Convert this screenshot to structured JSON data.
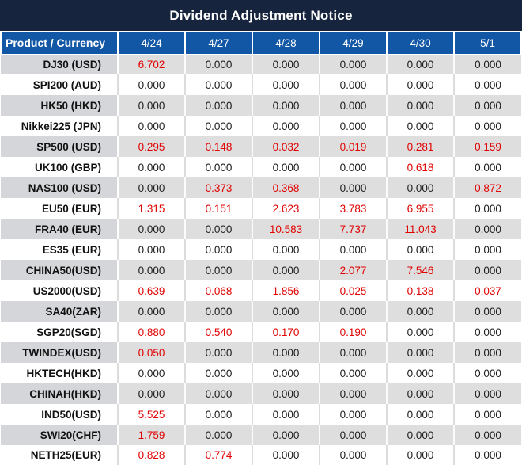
{
  "title": "Dividend Adjustment Notice",
  "colors": {
    "title_bg": "#16243e",
    "header_bg": "#1257a5",
    "gray_row_bg": "#dedede",
    "gray_row_product_bg": "#d4d6d9",
    "value_highlight_red": "#e00000",
    "value_normal": "#1c1c1c"
  },
  "table": {
    "columns": [
      "Product / Currency",
      "4/24",
      "4/27",
      "4/28",
      "4/29",
      "4/30",
      "5/1"
    ],
    "rows": [
      {
        "product": "DJ30 (USD)",
        "values": [
          "6.702",
          "0.000",
          "0.000",
          "0.000",
          "0.000",
          "0.000"
        ]
      },
      {
        "product": "SPI200 (AUD)",
        "values": [
          "0.000",
          "0.000",
          "0.000",
          "0.000",
          "0.000",
          "0.000"
        ]
      },
      {
        "product": "HK50 (HKD)",
        "values": [
          "0.000",
          "0.000",
          "0.000",
          "0.000",
          "0.000",
          "0.000"
        ]
      },
      {
        "product": "Nikkei225 (JPN)",
        "values": [
          "0.000",
          "0.000",
          "0.000",
          "0.000",
          "0.000",
          "0.000"
        ]
      },
      {
        "product": "SP500 (USD)",
        "values": [
          "0.295",
          "0.148",
          "0.032",
          "0.019",
          "0.281",
          "0.159"
        ]
      },
      {
        "product": "UK100 (GBP)",
        "values": [
          "0.000",
          "0.000",
          "0.000",
          "0.000",
          "0.618",
          "0.000"
        ]
      },
      {
        "product": "NAS100 (USD)",
        "values": [
          "0.000",
          "0.373",
          "0.368",
          "0.000",
          "0.000",
          "0.872"
        ]
      },
      {
        "product": "EU50 (EUR)",
        "values": [
          "1.315",
          "0.151",
          "2.623",
          "3.783",
          "6.955",
          "0.000"
        ]
      },
      {
        "product": "FRA40 (EUR)",
        "values": [
          "0.000",
          "0.000",
          "10.583",
          "7.737",
          "11.043",
          "0.000"
        ]
      },
      {
        "product": "ES35 (EUR)",
        "values": [
          "0.000",
          "0.000",
          "0.000",
          "0.000",
          "0.000",
          "0.000"
        ]
      },
      {
        "product": "CHINA50(USD)",
        "values": [
          "0.000",
          "0.000",
          "0.000",
          "2.077",
          "7.546",
          "0.000"
        ]
      },
      {
        "product": "US2000(USD)",
        "values": [
          "0.639",
          "0.068",
          "1.856",
          "0.025",
          "0.138",
          "0.037"
        ]
      },
      {
        "product": "SA40(ZAR)",
        "values": [
          "0.000",
          "0.000",
          "0.000",
          "0.000",
          "0.000",
          "0.000"
        ]
      },
      {
        "product": "SGP20(SGD)",
        "values": [
          "0.880",
          "0.540",
          "0.170",
          "0.190",
          "0.000",
          "0.000"
        ]
      },
      {
        "product": "TWINDEX(USD)",
        "values": [
          "0.050",
          "0.000",
          "0.000",
          "0.000",
          "0.000",
          "0.000"
        ]
      },
      {
        "product": "HKTECH(HKD)",
        "values": [
          "0.000",
          "0.000",
          "0.000",
          "0.000",
          "0.000",
          "0.000"
        ]
      },
      {
        "product": "CHINAH(HKD)",
        "values": [
          "0.000",
          "0.000",
          "0.000",
          "0.000",
          "0.000",
          "0.000"
        ]
      },
      {
        "product": "IND50(USD)",
        "values": [
          "5.525",
          "0.000",
          "0.000",
          "0.000",
          "0.000",
          "0.000"
        ]
      },
      {
        "product": "SWI20(CHF)",
        "values": [
          "1.759",
          "0.000",
          "0.000",
          "0.000",
          "0.000",
          "0.000"
        ]
      },
      {
        "product": "NETH25(EUR)",
        "values": [
          "0.828",
          "0.774",
          "0.000",
          "0.000",
          "0.000",
          "0.000"
        ]
      }
    ]
  }
}
